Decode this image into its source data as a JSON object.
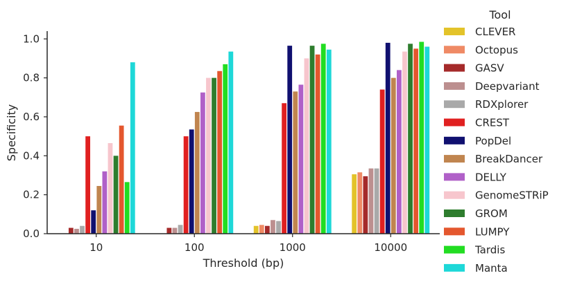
{
  "chart_data": {
    "type": "bar",
    "xlabel": "Threshold (bp)",
    "ylabel": "Specificity",
    "ylim": [
      0,
      1.04
    ],
    "yticks": [
      "0.0",
      "0.2",
      "0.4",
      "0.6",
      "0.8",
      "1.0"
    ],
    "categories": [
      "10",
      "100",
      "1000",
      "10000"
    ],
    "grid": false,
    "legend": {
      "title": "Tool",
      "placement": "right"
    },
    "series": [
      {
        "name": "CLEVER",
        "color": "#e3c32a",
        "values": [
          0.0,
          0.0,
          0.04,
          0.305
        ]
      },
      {
        "name": "Octopus",
        "color": "#ef8a65",
        "values": [
          0.0,
          0.0,
          0.045,
          0.315
        ]
      },
      {
        "name": "GASV",
        "color": "#a52a2a",
        "values": [
          0.03,
          0.03,
          0.04,
          0.295
        ]
      },
      {
        "name": "Deepvariant",
        "color": "#bc8f8f",
        "values": [
          0.025,
          0.03,
          0.07,
          0.335
        ]
      },
      {
        "name": "RDXplorer",
        "color": "#a9a9a9",
        "values": [
          0.04,
          0.045,
          0.065,
          0.335
        ]
      },
      {
        "name": "CREST",
        "color": "#e02020",
        "values": [
          0.5,
          0.5,
          0.67,
          0.74
        ]
      },
      {
        "name": "PopDel",
        "color": "#101070",
        "values": [
          0.12,
          0.535,
          0.965,
          0.98
        ]
      },
      {
        "name": "BreakDancer",
        "color": "#c0854f",
        "values": [
          0.245,
          0.625,
          0.73,
          0.8
        ]
      },
      {
        "name": "DELLY",
        "color": "#b060c8",
        "values": [
          0.32,
          0.725,
          0.765,
          0.84
        ]
      },
      {
        "name": "GenomeSTRiP",
        "color": "#f7c6cd",
        "values": [
          0.465,
          0.8,
          0.9,
          0.935
        ]
      },
      {
        "name": "GROM",
        "color": "#2e7d2e",
        "values": [
          0.4,
          0.8,
          0.965,
          0.975
        ]
      },
      {
        "name": "LUMPY",
        "color": "#e4572e",
        "values": [
          0.555,
          0.835,
          0.92,
          0.95
        ]
      },
      {
        "name": "Tardis",
        "color": "#22dd22",
        "values": [
          0.265,
          0.87,
          0.975,
          0.985
        ]
      },
      {
        "name": "Manta",
        "color": "#1ed8d8",
        "values": [
          0.88,
          0.935,
          0.945,
          0.96
        ]
      }
    ]
  }
}
